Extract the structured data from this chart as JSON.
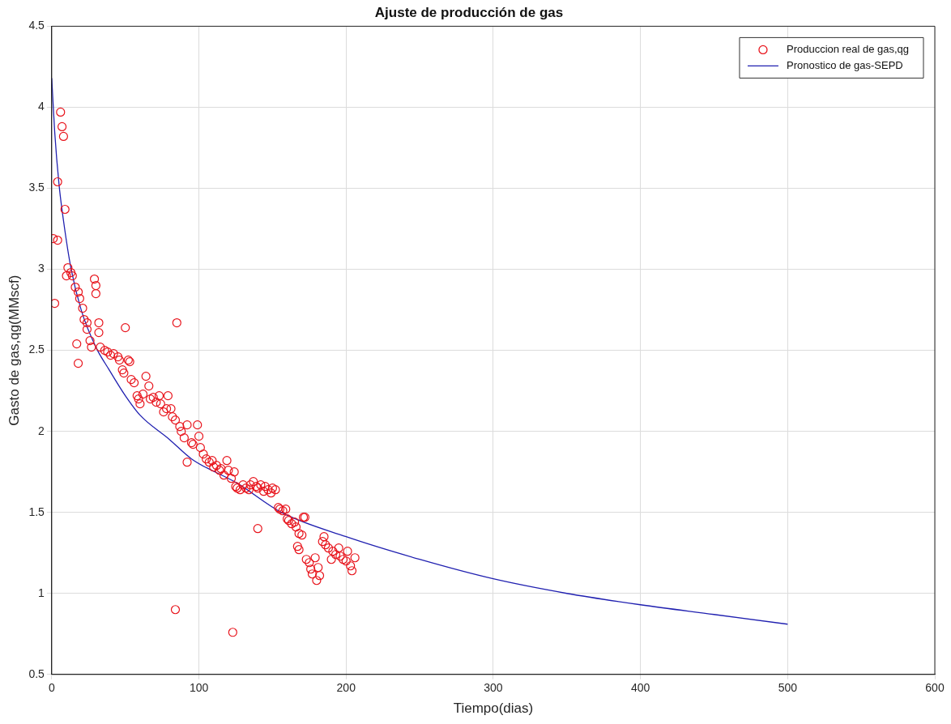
{
  "chart_data": {
    "type": "scatter",
    "title": "Ajuste de producción de gas",
    "xlabel": "Tiempo(dias)",
    "ylabel": "Gasto de gas,qg(MMscf)",
    "xlim": [
      0,
      600
    ],
    "xticks": [
      0,
      100,
      200,
      300,
      400,
      500,
      600
    ],
    "ylim": [
      0.5,
      4.5
    ],
    "yticks": [
      0.5,
      1,
      1.5,
      2,
      2.5,
      3,
      3.5,
      4,
      4.5
    ],
    "grid": true,
    "legend": "top right",
    "series": [
      {
        "name": "Produccion real de gas,qg",
        "marker": "circle",
        "color": "#e8141c",
        "x": [
          1,
          4,
          6,
          7,
          8,
          4,
          9,
          2,
          11,
          10,
          13,
          14,
          16,
          18,
          19,
          21,
          22,
          24,
          17,
          18,
          24,
          26,
          27,
          29,
          30,
          30,
          32,
          32,
          33,
          36,
          38,
          40,
          42,
          45,
          46,
          50,
          52,
          53,
          48,
          49,
          54,
          56,
          58,
          59,
          60,
          62,
          64,
          66,
          67,
          69,
          71,
          73,
          74,
          76,
          78,
          79,
          81,
          82,
          84,
          85,
          87,
          88,
          90,
          92,
          92,
          95,
          96,
          99,
          100,
          101,
          103,
          105,
          107,
          109,
          110,
          112,
          114,
          115,
          117,
          119,
          120,
          122,
          124,
          125,
          126,
          128,
          130,
          132,
          134,
          135,
          137,
          139,
          140,
          142,
          144,
          145,
          147,
          149,
          150,
          152,
          154,
          155,
          157,
          159,
          160,
          161,
          163,
          165,
          166,
          168,
          170,
          171,
          172,
          140,
          167,
          168,
          173,
          175,
          176,
          177,
          179,
          180,
          181,
          182,
          184,
          185,
          186,
          188,
          190,
          191,
          193,
          195,
          196,
          198,
          200,
          201,
          203,
          204,
          206,
          84,
          123
        ],
        "values": [
          3.19,
          3.18,
          3.97,
          3.88,
          3.82,
          3.54,
          3.37,
          2.79,
          3.01,
          2.96,
          2.98,
          2.96,
          2.89,
          2.86,
          2.82,
          2.76,
          2.69,
          2.67,
          2.54,
          2.42,
          2.63,
          2.56,
          2.52,
          2.94,
          2.9,
          2.85,
          2.67,
          2.61,
          2.52,
          2.5,
          2.49,
          2.47,
          2.48,
          2.46,
          2.44,
          2.64,
          2.44,
          2.43,
          2.38,
          2.36,
          2.32,
          2.3,
          2.22,
          2.2,
          2.17,
          2.23,
          2.34,
          2.28,
          2.2,
          2.21,
          2.18,
          2.22,
          2.17,
          2.12,
          2.14,
          2.22,
          2.14,
          2.09,
          2.07,
          2.67,
          2.03,
          2,
          1.96,
          2.04,
          1.81,
          1.93,
          1.92,
          2.04,
          1.97,
          1.9,
          1.86,
          1.83,
          1.81,
          1.82,
          1.78,
          1.79,
          1.76,
          1.77,
          1.73,
          1.82,
          1.76,
          1.71,
          1.75,
          1.66,
          1.65,
          1.64,
          1.67,
          1.65,
          1.64,
          1.67,
          1.69,
          1.66,
          1.65,
          1.67,
          1.63,
          1.66,
          1.64,
          1.62,
          1.65,
          1.64,
          1.53,
          1.52,
          1.51,
          1.52,
          1.46,
          1.45,
          1.43,
          1.44,
          1.41,
          1.37,
          1.36,
          1.47,
          1.47,
          1.4,
          1.29,
          1.27,
          1.21,
          1.19,
          1.15,
          1.12,
          1.22,
          1.08,
          1.16,
          1.11,
          1.32,
          1.35,
          1.3,
          1.28,
          1.21,
          1.26,
          1.24,
          1.28,
          1.23,
          1.21,
          1.2,
          1.26,
          1.17,
          1.14,
          1.22,
          0.9,
          0.76
        ]
      },
      {
        "name": "Pronostico de gas-SEPD",
        "type": "line",
        "marker": "none",
        "line_style": "solid",
        "color": "#2020b0",
        "x": [
          0,
          2,
          5,
          8,
          13,
          20,
          30,
          39,
          50,
          60,
          80,
          95,
          126,
          156,
          200,
          250,
          300,
          350,
          400,
          450,
          500
        ],
        "values": [
          4.18,
          3.85,
          3.52,
          3.3,
          3.01,
          2.75,
          2.52,
          2.38,
          2.22,
          2.1,
          1.95,
          1.83,
          1.68,
          1.5,
          1.35,
          1.21,
          1.09,
          1,
          0.93,
          0.87,
          0.81
        ]
      }
    ]
  }
}
